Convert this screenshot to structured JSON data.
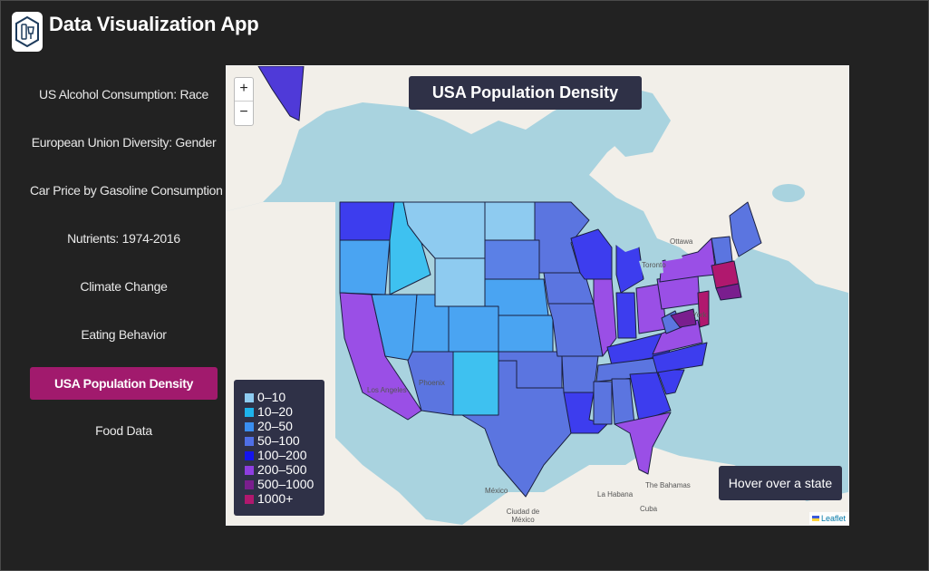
{
  "app": {
    "title": "Data Visualization App",
    "logo_icon": "bottle-glass-logo-icon"
  },
  "sidebar": {
    "items": [
      {
        "label": "US Alcohol Consumption: Race",
        "active": false
      },
      {
        "label": "European Union Diversity: Gender",
        "active": false
      },
      {
        "label": "Car Price by Gasoline Consumption",
        "active": false
      },
      {
        "label": "Nutrients: 1974-2016",
        "active": false
      },
      {
        "label": "Climate Change",
        "active": false
      },
      {
        "label": "Eating Behavior",
        "active": false
      },
      {
        "label": "USA Population Density",
        "active": true
      },
      {
        "label": "Food Data",
        "active": false
      }
    ]
  },
  "map": {
    "title": "USA Population Density",
    "zoom_in_label": "+",
    "zoom_out_label": "−",
    "hover_text": "Hover over a state",
    "attribution": "Leaflet",
    "legend": {
      "bins": [
        {
          "label": "0–10",
          "color": "#8ecbf0"
        },
        {
          "label": "10–20",
          "color": "#1eb3ec"
        },
        {
          "label": "20–50",
          "color": "#3a8ef0"
        },
        {
          "label": "50–100",
          "color": "#4f6fe6"
        },
        {
          "label": "100–200",
          "color": "#1414ee"
        },
        {
          "label": "200–500",
          "color": "#8e3ee0"
        },
        {
          "label": "500–1000",
          "color": "#7a1e8e"
        },
        {
          "label": "1000+",
          "color": "#b0186e"
        }
      ]
    },
    "place_labels": {
      "ottawa": "Ottawa",
      "toronto": "Toronto",
      "new_york": "York",
      "los_angeles": "Los Angeles",
      "phoenix": "Phoenix",
      "mexico": "México",
      "ciudad_de_mexico": "Ciudad de México",
      "la_habana": "La Habana",
      "bahamas": "The Bahamas",
      "cuba": "Cuba"
    },
    "colors": {
      "background": "#222222",
      "panel": "#2f3147",
      "active_nav": "#a11a6d",
      "water": "#a9d3df",
      "land": "#f2efe9"
    }
  }
}
